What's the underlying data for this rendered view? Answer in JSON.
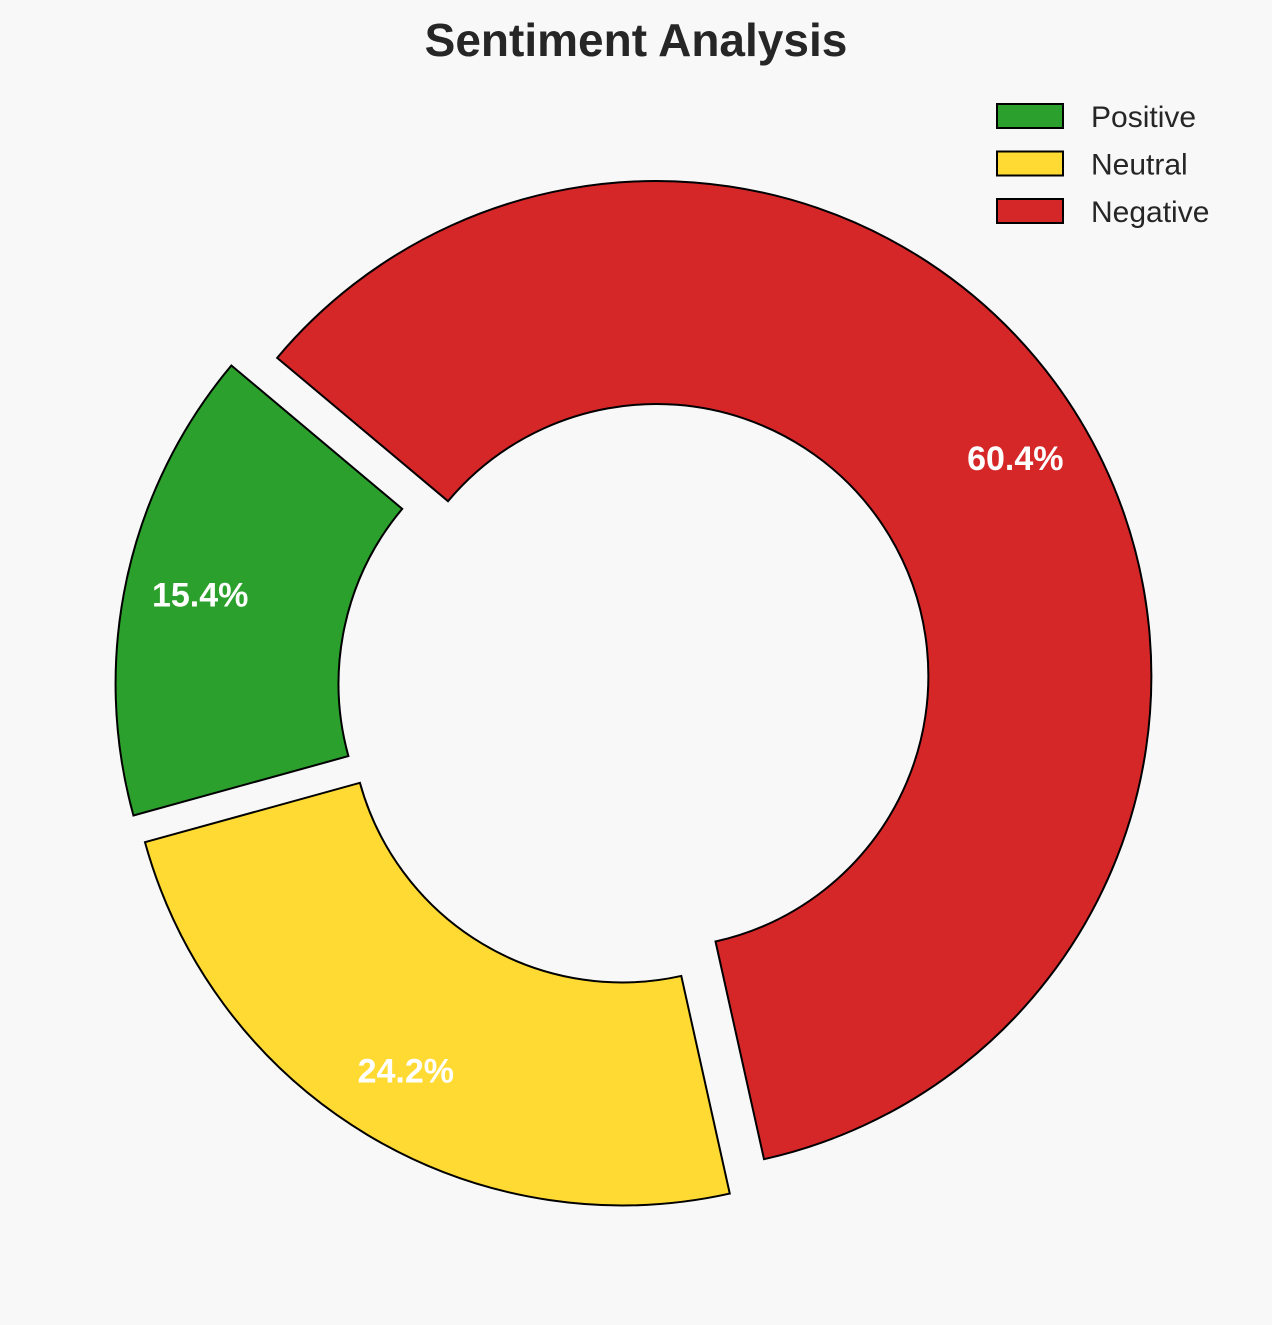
{
  "chart_data": {
    "type": "pie",
    "variant": "donut",
    "title": "Sentiment Analysis",
    "categories": [
      "Positive",
      "Neutral",
      "Negative"
    ],
    "values": [
      15.4,
      24.2,
      60.4
    ],
    "labels": [
      "15.4%",
      "24.2%",
      "60.4%"
    ],
    "colors": [
      "#2ca02c",
      "#ffda33",
      "#d62728"
    ],
    "edge_color": "#000000",
    "start_angle": 140,
    "direction": "counterclockwise",
    "exploded": true,
    "legend": {
      "placement": "top-right",
      "entries": [
        "Positive",
        "Neutral",
        "Negative"
      ]
    }
  }
}
